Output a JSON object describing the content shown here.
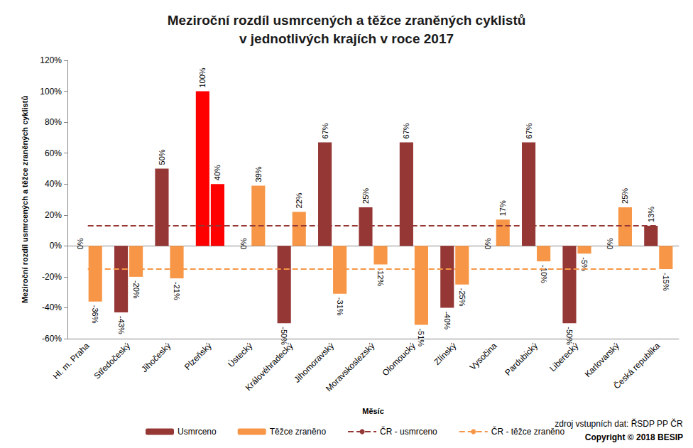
{
  "chart_data": {
    "type": "bar",
    "title": "Meziroční rozdíl usmrcených a těžce zraněných cyklistů\nv jednotlivých krajích v roce 2017",
    "x_label": "Měsíc",
    "y_label": "Meziroční rozdíl usmrcených a těžce zraněných cyklistů",
    "categories": [
      "Hl. m. Praha",
      "Středočeský",
      "Jihočeský",
      "Plzeňský",
      "Ústecký",
      "Královéhradecký",
      "Jihomoravský",
      "Moravskoslezský",
      "Olomoucký",
      "Zlínský",
      "Vysočina",
      "Pardubický",
      "Liberecký",
      "Karlovarský",
      "Česká republika"
    ],
    "series": [
      {
        "name": "Usmrceno",
        "type": "bar",
        "color": "#953735",
        "colors": [
          "#953735",
          "#953735",
          "#953735",
          "#FF0000",
          "#953735",
          "#953735",
          "#953735",
          "#953735",
          "#953735",
          "#953735",
          "#953735",
          "#953735",
          "#953735",
          "#953735",
          "#953735"
        ],
        "values": [
          0,
          -43,
          50,
          100,
          0,
          -50,
          67,
          25,
          67,
          -40,
          0,
          67,
          -50,
          0,
          13
        ],
        "value_labels": [
          "0%",
          "-43%",
          "50%",
          "100%",
          "0%",
          "-50%",
          "67%",
          "25%",
          "67%",
          "-40%",
          "0%",
          "67%",
          "-50%",
          "0%",
          "13%"
        ]
      },
      {
        "name": "Těžce zraněno",
        "type": "bar",
        "color": "#F79646",
        "colors": [
          "#F79646",
          "#F79646",
          "#F79646",
          "#FF0000",
          "#F79646",
          "#F79646",
          "#F79646",
          "#F79646",
          "#F79646",
          "#F79646",
          "#F79646",
          "#F79646",
          "#F79646",
          "#F79646",
          "#F79646"
        ],
        "values": [
          -36,
          -20,
          -21,
          40,
          39,
          22,
          -31,
          -12,
          -51,
          -25,
          17,
          -10,
          -5,
          25,
          -15
        ],
        "value_labels": [
          "-36%",
          "-20%",
          "-21%",
          "40%",
          "39%",
          "22%",
          "-31%",
          "-12%",
          "-51%",
          "-25%",
          "17%",
          "-10%",
          "-5%",
          "25%",
          "-15%"
        ]
      },
      {
        "name": "ČR - usmrceno",
        "type": "line",
        "line_style": "dashed",
        "color": "#953735",
        "values": [
          13,
          13,
          13,
          13,
          13,
          13,
          13,
          13,
          13,
          13,
          13,
          13,
          13,
          13,
          13
        ]
      },
      {
        "name": "ČR - těžce zraněno",
        "type": "line",
        "line_style": "dashed",
        "color": "#F79646",
        "values": [
          -15,
          -15,
          -15,
          -15,
          -15,
          -15,
          -15,
          -15,
          -15,
          -15,
          -15,
          -15,
          -15,
          -15,
          -15
        ]
      }
    ],
    "ylim": [
      -60,
      120
    ],
    "yticks": [
      {
        "value": -60,
        "label": "-60%"
      },
      {
        "value": -40,
        "label": "-40%"
      },
      {
        "value": -20,
        "label": "-20%"
      },
      {
        "value": 0,
        "label": "0%"
      },
      {
        "value": 20,
        "label": "20%"
      },
      {
        "value": 40,
        "label": "40%"
      },
      {
        "value": 60,
        "label": "60%"
      },
      {
        "value": 80,
        "label": "80%"
      },
      {
        "value": 100,
        "label": "100%"
      },
      {
        "value": 120,
        "label": "120%"
      }
    ],
    "grid": false,
    "legend": "bottom",
    "data_labels": true,
    "annotations": [
      "zdroj vstupních dat: ŘSDP PP ČR",
      "Copyright © 2018 BESIP"
    ]
  }
}
